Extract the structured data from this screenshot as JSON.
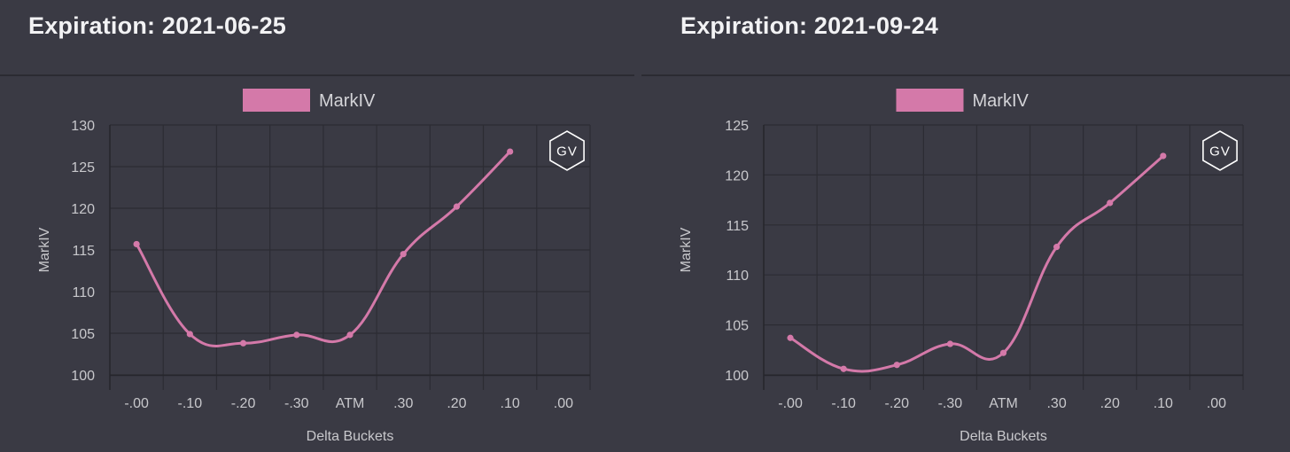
{
  "colors": {
    "background": "#3a3a44",
    "series": "#d479a9",
    "grid": "#2c2c33",
    "text": "#c8c8cc",
    "title": "#f2f2f4"
  },
  "logo_icon": "gv-hexagon-logo",
  "chart_data": [
    {
      "type": "line",
      "title": "Expiration: 2021-06-25",
      "xlabel": "Delta Buckets",
      "ylabel": "MarkIV",
      "categories": [
        "-.00",
        "-.10",
        "-.20",
        "-.30",
        "ATM",
        ".30",
        ".20",
        ".10",
        ".00"
      ],
      "yticks": [
        "130",
        "125",
        "120",
        "115",
        "110",
        "105",
        "100"
      ],
      "ylim": [
        100,
        130
      ],
      "grid": true,
      "legend": "top-center",
      "legend_label": "MarkIV",
      "logo": "GV",
      "series": [
        {
          "name": "MarkIV",
          "values": [
            115.7,
            104.9,
            103.8,
            104.8,
            104.8,
            114.5,
            120.2,
            126.8,
            null
          ]
        }
      ]
    },
    {
      "type": "line",
      "title": "Expiration: 2021-09-24",
      "xlabel": "Delta Buckets",
      "ylabel": "MarkIV",
      "categories": [
        "-.00",
        "-.10",
        "-.20",
        "-.30",
        "ATM",
        ".30",
        ".20",
        ".10",
        ".00"
      ],
      "yticks": [
        "125",
        "120",
        "115",
        "110",
        "105",
        "100"
      ],
      "ylim": [
        100,
        125
      ],
      "grid": true,
      "legend": "top-center",
      "legend_label": "MarkIV",
      "logo": "GV",
      "series": [
        {
          "name": "MarkIV",
          "values": [
            103.7,
            100.6,
            101.0,
            103.1,
            102.2,
            112.8,
            117.2,
            121.9,
            null
          ]
        }
      ]
    }
  ]
}
